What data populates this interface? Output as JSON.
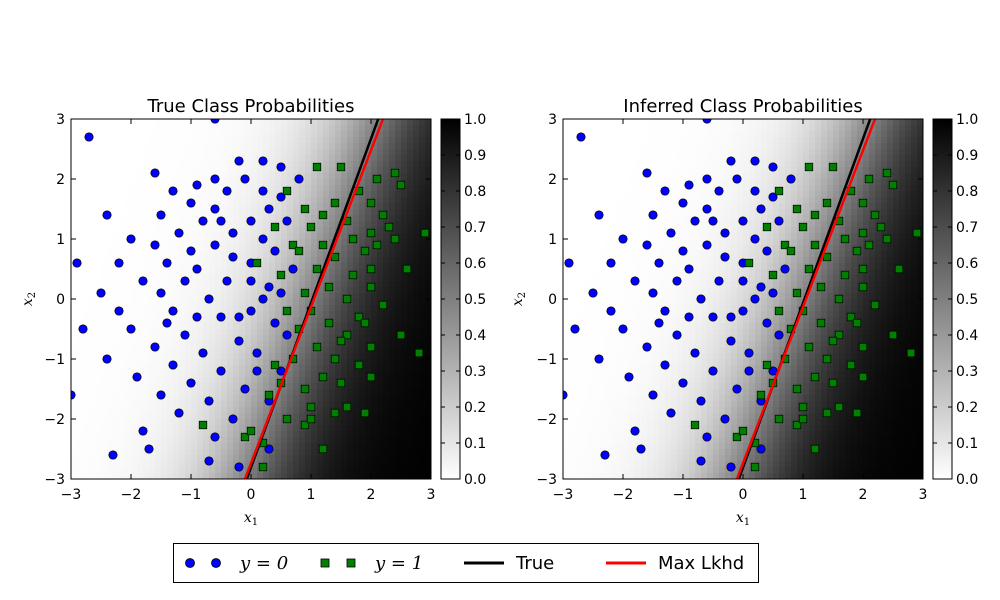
{
  "colors": {
    "class0": "#0000ff",
    "class1": "#007f00",
    "true_line": "#000000",
    "max_lkhd_line": "#ff0000",
    "colormap": "gray_r"
  },
  "legend": {
    "entries": [
      {
        "label": "y = 0",
        "kind": "marker",
        "marker": "circle",
        "color": "#0000ff"
      },
      {
        "label": "y = 1",
        "kind": "marker",
        "marker": "square",
        "color": "#007f00"
      },
      {
        "label": "True",
        "kind": "line",
        "color": "#000000"
      },
      {
        "label": "Max Lkhd",
        "kind": "line",
        "color": "#ff0000"
      }
    ],
    "placement": "bottom-center"
  },
  "chart_data": [
    {
      "type": "scatter",
      "title": "True Class Probabilities",
      "xlabel": "x1",
      "ylabel": "x2",
      "xlim": [
        -3,
        3
      ],
      "ylim": [
        -3,
        3
      ],
      "xticks": [
        -3,
        -2,
        -1,
        0,
        1,
        2,
        3
      ],
      "yticks": [
        -3,
        -2,
        -1,
        0,
        1,
        2,
        3
      ],
      "background": {
        "type": "heatmap",
        "colormap": "gray_r",
        "range": [
          0,
          1
        ],
        "boundary_line": "True"
      },
      "colorbar": {
        "range": [
          0,
          1
        ],
        "ticks": [
          "0.0",
          "0.1",
          "0.2",
          "0.3",
          "0.4",
          "0.5",
          "0.6",
          "0.7",
          "0.8",
          "0.9",
          "1.0"
        ]
      },
      "lines": [
        {
          "name": "True",
          "color": "#000000",
          "x": [
            -0.07,
            2.12
          ],
          "y": [
            -3,
            3
          ]
        },
        {
          "name": "Max Lkhd",
          "color": "#ff0000",
          "x": [
            -0.1,
            2.2
          ],
          "y": [
            -3,
            3
          ]
        }
      ],
      "series": [
        {
          "name": "y = 0",
          "marker": "circle",
          "color": "#0000ff",
          "points": [
            [
              -2.7,
              2.7
            ],
            [
              -0.6,
              3.0
            ],
            [
              -1.6,
              2.1
            ],
            [
              -0.2,
              2.3
            ],
            [
              0.2,
              2.3
            ],
            [
              0.5,
              2.2
            ],
            [
              -0.6,
              2.0
            ],
            [
              -0.1,
              2.0
            ],
            [
              0.8,
              2.0
            ],
            [
              -1.3,
              1.8
            ],
            [
              -0.9,
              1.9
            ],
            [
              -0.4,
              1.8
            ],
            [
              0.2,
              1.8
            ],
            [
              0.5,
              1.7
            ],
            [
              -1.0,
              1.6
            ],
            [
              -0.6,
              1.5
            ],
            [
              0.3,
              1.5
            ],
            [
              -2.4,
              1.4
            ],
            [
              -1.5,
              1.4
            ],
            [
              -0.8,
              1.3
            ],
            [
              0.0,
              1.3
            ],
            [
              0.6,
              1.3
            ],
            [
              -1.2,
              1.1
            ],
            [
              -0.3,
              1.1
            ],
            [
              0.2,
              1.0
            ],
            [
              -2.0,
              1.0
            ],
            [
              -1.6,
              0.9
            ],
            [
              -0.6,
              0.9
            ],
            [
              0.4,
              0.8
            ],
            [
              -2.9,
              0.6
            ],
            [
              -2.2,
              0.6
            ],
            [
              -1.4,
              0.6
            ],
            [
              -0.9,
              0.5
            ],
            [
              0.0,
              0.6
            ],
            [
              0.7,
              0.5
            ],
            [
              -1.8,
              0.3
            ],
            [
              -1.1,
              0.3
            ],
            [
              -0.4,
              0.3
            ],
            [
              0.3,
              0.2
            ],
            [
              -2.5,
              0.1
            ],
            [
              -1.5,
              0.1
            ],
            [
              -0.7,
              0.0
            ],
            [
              0.2,
              0.0
            ],
            [
              -2.2,
              -0.2
            ],
            [
              -1.3,
              -0.2
            ],
            [
              -0.5,
              -0.3
            ],
            [
              0.4,
              -0.4
            ],
            [
              -2.8,
              -0.5
            ],
            [
              -2.0,
              -0.5
            ],
            [
              -1.1,
              -0.6
            ],
            [
              -0.2,
              -0.7
            ],
            [
              -1.6,
              -0.8
            ],
            [
              -0.8,
              -0.9
            ],
            [
              0.1,
              -0.9
            ],
            [
              -2.4,
              -1.0
            ],
            [
              -1.3,
              -1.1
            ],
            [
              -0.5,
              -1.2
            ],
            [
              0.5,
              -1.2
            ],
            [
              -1.9,
              -1.3
            ],
            [
              -1.0,
              -1.4
            ],
            [
              -0.1,
              -1.5
            ],
            [
              -1.5,
              -1.6
            ],
            [
              -0.7,
              -1.7
            ],
            [
              0.3,
              -1.7
            ],
            [
              -3.0,
              -1.6
            ],
            [
              -1.2,
              -1.9
            ],
            [
              -0.3,
              -2.0
            ],
            [
              -1.8,
              -2.2
            ],
            [
              -0.6,
              -2.3
            ],
            [
              0.3,
              -2.5
            ],
            [
              -2.3,
              -2.6
            ],
            [
              -1.7,
              -2.5
            ],
            [
              -0.7,
              -2.7
            ],
            [
              -0.2,
              -2.8
            ],
            [
              0.0,
              0.3
            ],
            [
              -0.3,
              0.7
            ],
            [
              0.5,
              0.1
            ],
            [
              -0.9,
              -0.3
            ],
            [
              -0.2,
              -0.3
            ],
            [
              0.1,
              -1.2
            ],
            [
              -1.0,
              0.8
            ],
            [
              -0.5,
              1.3
            ],
            [
              0.6,
              -0.6
            ],
            [
              -1.4,
              -0.4
            ],
            [
              0.0,
              -0.2
            ]
          ]
        },
        {
          "name": "y = 1",
          "marker": "square",
          "color": "#007f00",
          "points": [
            [
              1.5,
              2.2
            ],
            [
              2.1,
              2.0
            ],
            [
              2.4,
              2.1
            ],
            [
              2.5,
              1.9
            ],
            [
              1.1,
              2.2
            ],
            [
              0.6,
              1.8
            ],
            [
              1.8,
              1.8
            ],
            [
              2.0,
              1.6
            ],
            [
              1.4,
              1.6
            ],
            [
              2.2,
              1.4
            ],
            [
              0.9,
              1.5
            ],
            [
              1.6,
              1.3
            ],
            [
              2.3,
              1.2
            ],
            [
              1.0,
              1.2
            ],
            [
              2.0,
              1.1
            ],
            [
              2.9,
              1.1
            ],
            [
              1.7,
              1.0
            ],
            [
              2.4,
              1.0
            ],
            [
              1.2,
              0.9
            ],
            [
              0.7,
              0.9
            ],
            [
              1.9,
              0.8
            ],
            [
              1.4,
              0.7
            ],
            [
              2.0,
              0.5
            ],
            [
              2.6,
              0.5
            ],
            [
              1.1,
              0.5
            ],
            [
              1.7,
              0.4
            ],
            [
              0.5,
              0.4
            ],
            [
              1.3,
              0.2
            ],
            [
              2.0,
              0.2
            ],
            [
              0.9,
              0.1
            ],
            [
              1.6,
              0.0
            ],
            [
              2.2,
              -0.1
            ],
            [
              1.0,
              -0.2
            ],
            [
              1.8,
              -0.3
            ],
            [
              1.3,
              -0.4
            ],
            [
              2.5,
              -0.6
            ],
            [
              0.8,
              -0.5
            ],
            [
              1.6,
              -0.6
            ],
            [
              2.0,
              -0.8
            ],
            [
              1.1,
              -0.8
            ],
            [
              1.4,
              -1.0
            ],
            [
              2.8,
              -0.9
            ],
            [
              0.7,
              -1.0
            ],
            [
              1.8,
              -1.1
            ],
            [
              1.2,
              -1.3
            ],
            [
              2.0,
              -1.3
            ],
            [
              0.5,
              -1.4
            ],
            [
              1.5,
              -1.4
            ],
            [
              0.9,
              -1.5
            ],
            [
              0.3,
              -1.6
            ],
            [
              1.0,
              -1.8
            ],
            [
              1.6,
              -1.8
            ],
            [
              0.6,
              -2.0
            ],
            [
              0.9,
              -2.1
            ],
            [
              -0.1,
              -2.3
            ],
            [
              0.2,
              -2.4
            ],
            [
              1.2,
              -2.5
            ],
            [
              0.2,
              -2.8
            ],
            [
              0.0,
              -2.2
            ],
            [
              -0.8,
              -2.1
            ],
            [
              1.4,
              -1.9
            ],
            [
              1.0,
              -2.0
            ],
            [
              1.9,
              -1.9
            ],
            [
              0.4,
              -1.1
            ],
            [
              0.1,
              0.6
            ],
            [
              1.5,
              -0.7
            ],
            [
              0.6,
              -0.2
            ],
            [
              1.9,
              -0.4
            ],
            [
              0.8,
              0.8
            ],
            [
              2.1,
              0.9
            ],
            [
              1.2,
              1.4
            ],
            [
              0.4,
              1.2
            ]
          ]
        }
      ]
    },
    {
      "type": "scatter",
      "title": "Inferred Class Probabilities",
      "xlabel": "x1",
      "ylabel": "x2",
      "xlim": [
        -3,
        3
      ],
      "ylim": [
        -3,
        3
      ],
      "xticks": [
        -3,
        -2,
        -1,
        0,
        1,
        2,
        3
      ],
      "yticks": [
        -3,
        -2,
        -1,
        0,
        1,
        2,
        3
      ],
      "background": {
        "type": "heatmap",
        "colormap": "gray_r",
        "range": [
          0,
          1
        ],
        "boundary_line": "Max Lkhd"
      },
      "colorbar": {
        "range": [
          0,
          1
        ],
        "ticks": [
          "0.0",
          "0.1",
          "0.2",
          "0.3",
          "0.4",
          "0.5",
          "0.6",
          "0.7",
          "0.8",
          "0.9",
          "1.0"
        ]
      },
      "lines": [
        {
          "name": "True",
          "color": "#000000",
          "x": [
            -0.07,
            2.12
          ],
          "y": [
            -3,
            3
          ]
        },
        {
          "name": "Max Lkhd",
          "color": "#ff0000",
          "x": [
            -0.1,
            2.2
          ],
          "y": [
            -3,
            3
          ]
        }
      ],
      "series": "same-as-left"
    }
  ]
}
